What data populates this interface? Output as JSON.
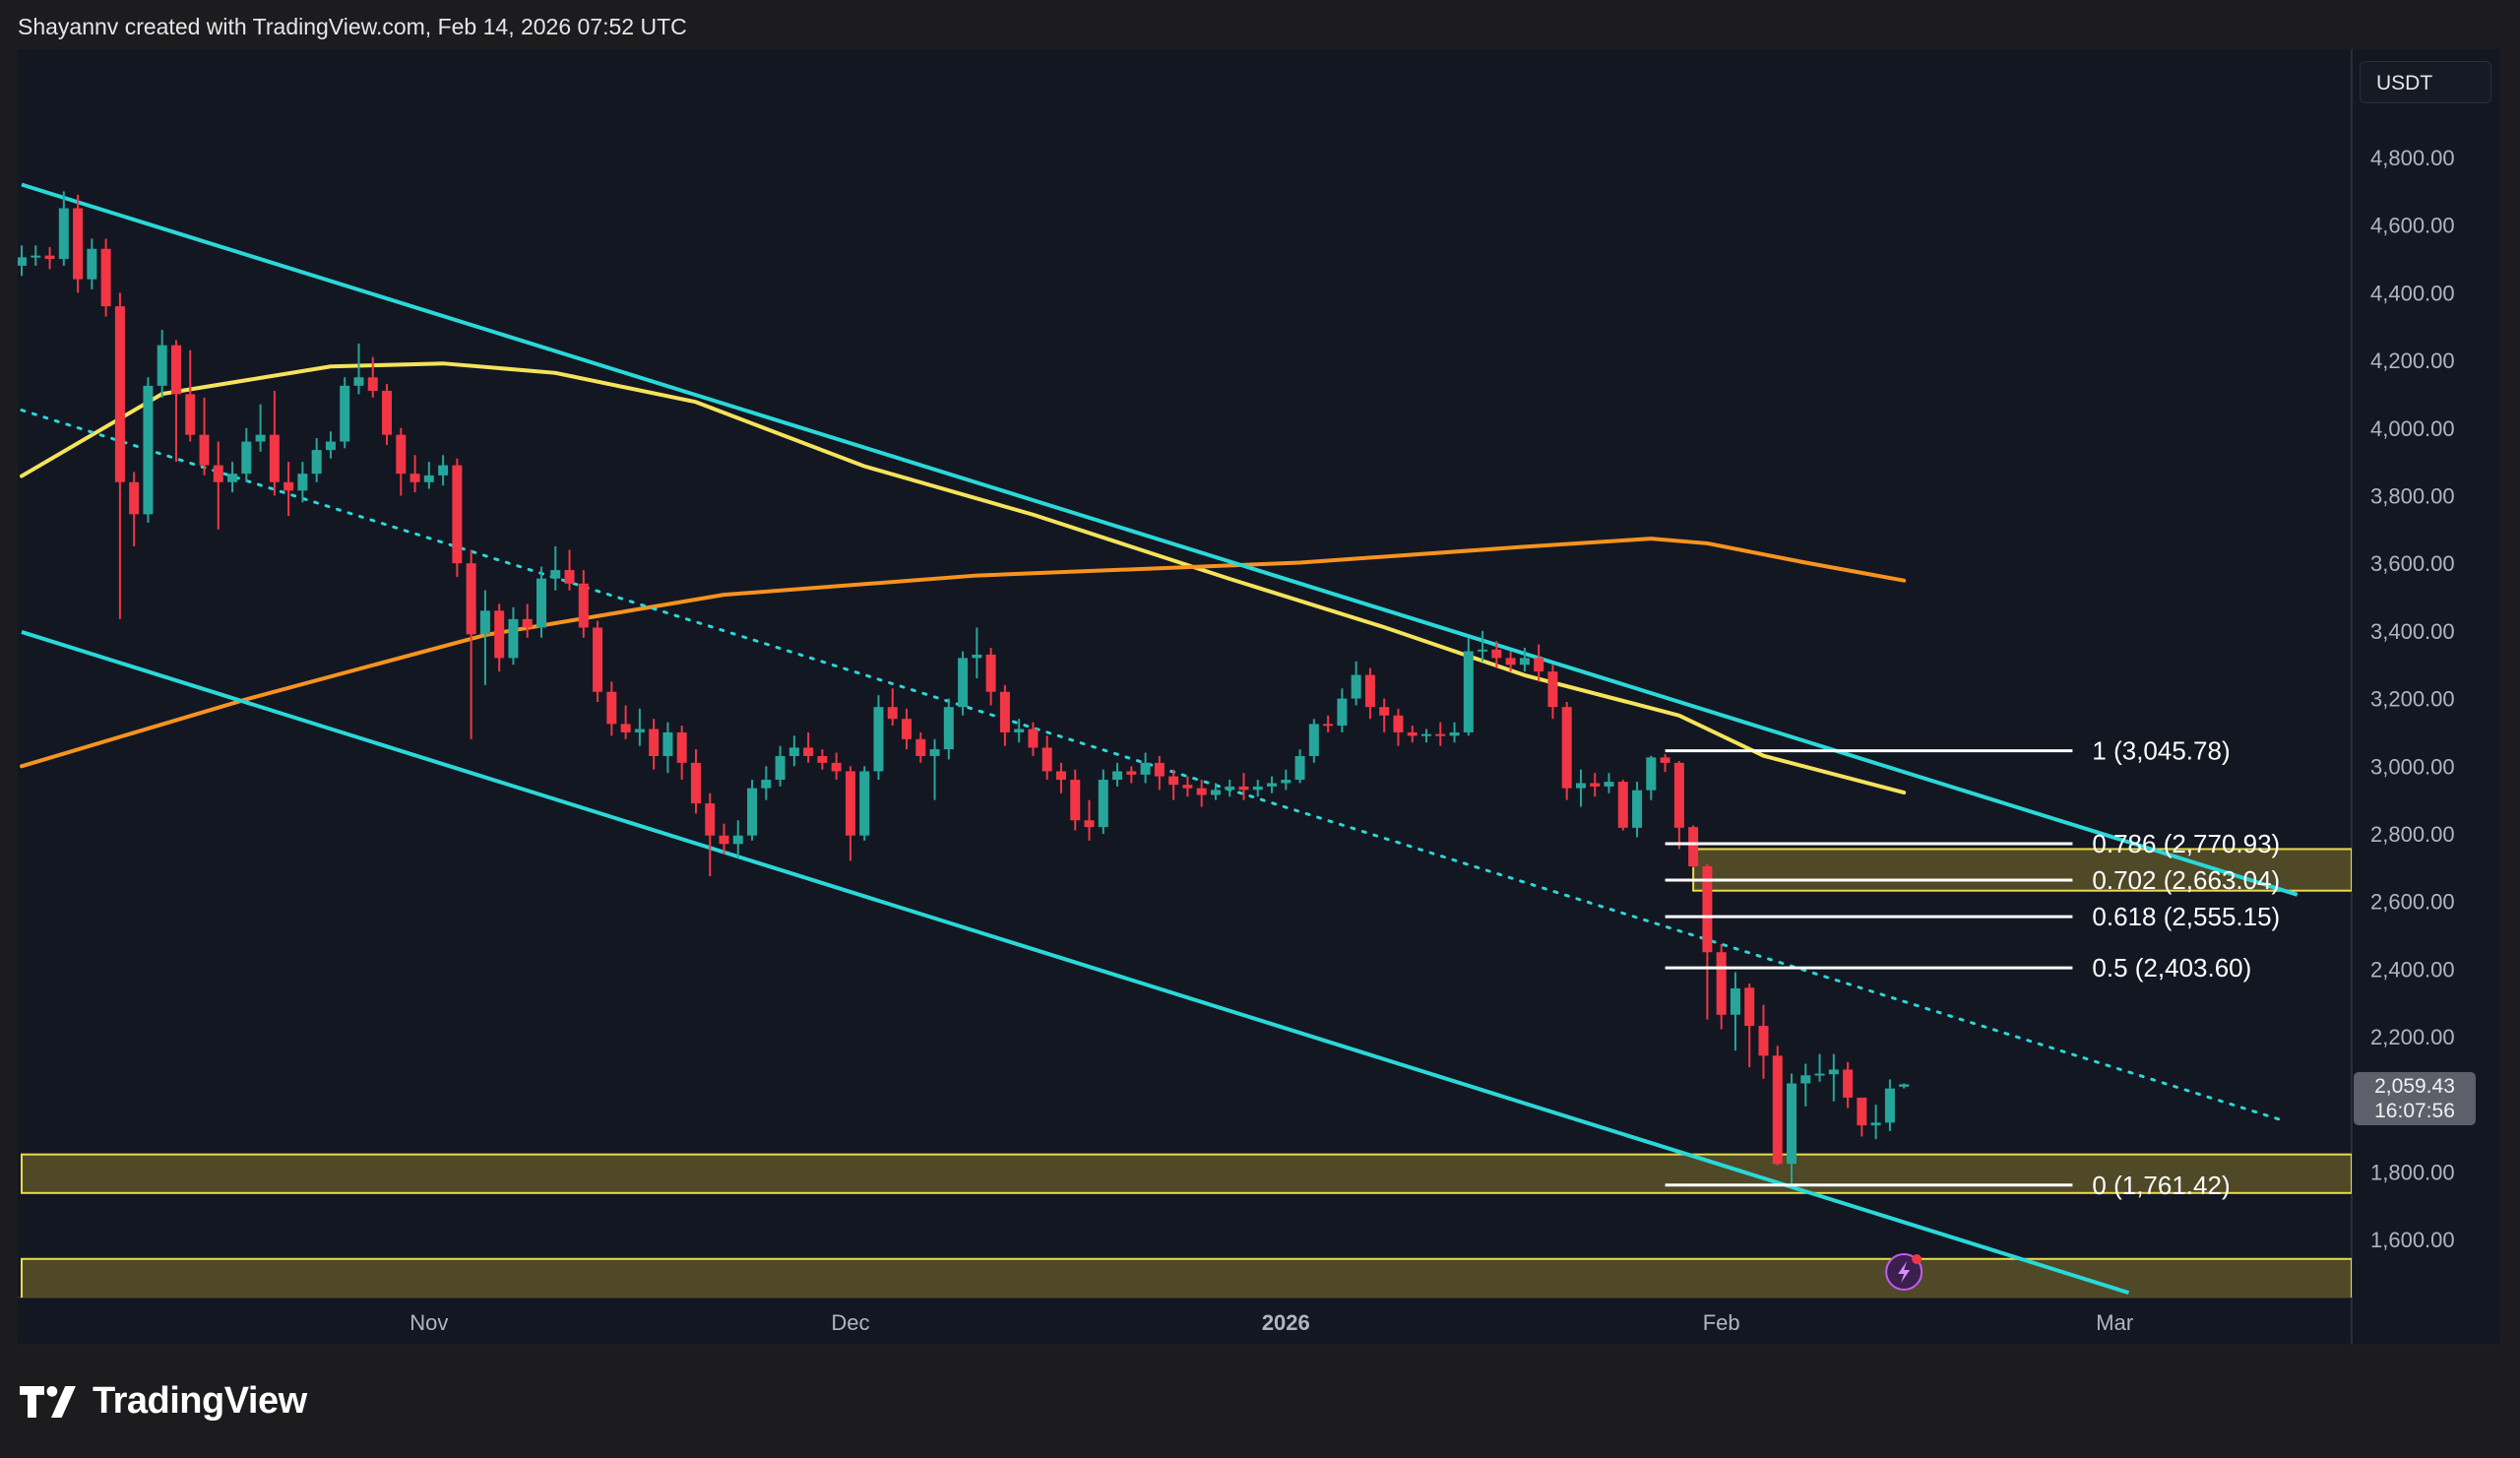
{
  "header": {
    "attribution": "Shayannv created with TradingView.com, Feb 14, 2026 07:52 UTC"
  },
  "currency_button": "USDT",
  "last_price": {
    "price": "2,059.43",
    "countdown": "16:07:56"
  },
  "logo": {
    "text": "TradingView"
  },
  "colors": {
    "up": "#26a69a",
    "down": "#f23645",
    "channel": "#2ad8d8",
    "ma_fast": "#f5e35a",
    "ma_slow": "#f7931e",
    "zone_fill": "#5a5228",
    "zone_border": "#e8dc4a",
    "fib": "#ffffff",
    "background": "#131722"
  },
  "chart_data": {
    "type": "candlestick",
    "title": "",
    "ylim": [
      1420,
      4900
    ],
    "xlim": [
      "2025-10-03",
      "2026-03-24"
    ],
    "grid": false,
    "y_ticks": [
      "4,800.00",
      "4,600.00",
      "4,400.00",
      "4,200.00",
      "4,000.00",
      "3,800.00",
      "3,600.00",
      "3,400.00",
      "3,200.00",
      "3,000.00",
      "2,800.00",
      "2,600.00",
      "2,400.00",
      "2,200.00",
      "1,800.00",
      "1,600.00"
    ],
    "y_tick_values": [
      4800,
      4600,
      4400,
      4200,
      4000,
      3800,
      3600,
      3400,
      3200,
      3000,
      2800,
      2600,
      2400,
      2200,
      1800,
      1600
    ],
    "x_ticks": [
      {
        "label": "Nov",
        "date": "2025-11-01",
        "bold": false
      },
      {
        "label": "Dec",
        "date": "2025-12-01",
        "bold": false
      },
      {
        "label": "2026",
        "date": "2026-01-01",
        "bold": true
      },
      {
        "label": "Feb",
        "date": "2026-02-01",
        "bold": false
      },
      {
        "label": "Mar",
        "date": "2026-03-01",
        "bold": false
      }
    ],
    "candles": [
      [
        "2025-10-03",
        4480,
        4540,
        4450,
        4505
      ],
      [
        "2025-10-04",
        4505,
        4540,
        4480,
        4510
      ],
      [
        "2025-10-05",
        4510,
        4535,
        4470,
        4500
      ],
      [
        "2025-10-06",
        4500,
        4700,
        4480,
        4650
      ],
      [
        "2025-10-07",
        4650,
        4690,
        4400,
        4440
      ],
      [
        "2025-10-08",
        4440,
        4560,
        4410,
        4530
      ],
      [
        "2025-10-09",
        4530,
        4560,
        4330,
        4360
      ],
      [
        "2025-10-10",
        4360,
        4400,
        3435,
        3840
      ],
      [
        "2025-10-11",
        3840,
        3870,
        3650,
        3745
      ],
      [
        "2025-10-12",
        3745,
        4150,
        3720,
        4125
      ],
      [
        "2025-10-13",
        4125,
        4290,
        4090,
        4245
      ],
      [
        "2025-10-14",
        4245,
        4260,
        3900,
        4100
      ],
      [
        "2025-10-15",
        4100,
        4230,
        3960,
        3980
      ],
      [
        "2025-10-16",
        3980,
        4090,
        3860,
        3890
      ],
      [
        "2025-10-17",
        3890,
        3960,
        3700,
        3840
      ],
      [
        "2025-10-18",
        3840,
        3900,
        3810,
        3865
      ],
      [
        "2025-10-19",
        3865,
        4000,
        3840,
        3960
      ],
      [
        "2025-10-20",
        3960,
        4070,
        3930,
        3980
      ],
      [
        "2025-10-21",
        3980,
        4110,
        3800,
        3840
      ],
      [
        "2025-10-22",
        3840,
        3900,
        3740,
        3815
      ],
      [
        "2025-10-23",
        3815,
        3900,
        3780,
        3865
      ],
      [
        "2025-10-24",
        3865,
        3970,
        3840,
        3935
      ],
      [
        "2025-10-25",
        3935,
        3990,
        3910,
        3960
      ],
      [
        "2025-10-26",
        3960,
        4150,
        3940,
        4125
      ],
      [
        "2025-10-27",
        4125,
        4250,
        4100,
        4150
      ],
      [
        "2025-10-28",
        4150,
        4210,
        4090,
        4110
      ],
      [
        "2025-10-29",
        4110,
        4130,
        3950,
        3980
      ],
      [
        "2025-10-30",
        3980,
        4000,
        3800,
        3865
      ],
      [
        "2025-10-31",
        3865,
        3920,
        3810,
        3840
      ],
      [
        "2025-11-01",
        3840,
        3900,
        3820,
        3860
      ],
      [
        "2025-11-02",
        3860,
        3920,
        3830,
        3890
      ],
      [
        "2025-11-03",
        3890,
        3910,
        3560,
        3600
      ],
      [
        "2025-11-04",
        3600,
        3640,
        3080,
        3390
      ],
      [
        "2025-11-05",
        3390,
        3520,
        3240,
        3460
      ],
      [
        "2025-11-06",
        3460,
        3480,
        3280,
        3320
      ],
      [
        "2025-11-07",
        3320,
        3470,
        3300,
        3435
      ],
      [
        "2025-11-08",
        3435,
        3480,
        3380,
        3410
      ],
      [
        "2025-11-09",
        3410,
        3590,
        3380,
        3555
      ],
      [
        "2025-11-10",
        3555,
        3650,
        3520,
        3580
      ],
      [
        "2025-11-11",
        3580,
        3640,
        3520,
        3540
      ],
      [
        "2025-11-12",
        3540,
        3580,
        3380,
        3410
      ],
      [
        "2025-11-13",
        3410,
        3430,
        3190,
        3220
      ],
      [
        "2025-11-14",
        3220,
        3250,
        3090,
        3125
      ],
      [
        "2025-11-15",
        3125,
        3180,
        3080,
        3100
      ],
      [
        "2025-11-16",
        3100,
        3170,
        3060,
        3110
      ],
      [
        "2025-11-17",
        3110,
        3140,
        2990,
        3030
      ],
      [
        "2025-11-18",
        3030,
        3130,
        2980,
        3100
      ],
      [
        "2025-11-19",
        3100,
        3120,
        2960,
        3010
      ],
      [
        "2025-11-20",
        3010,
        3050,
        2860,
        2890
      ],
      [
        "2025-11-21",
        2890,
        2920,
        2675,
        2795
      ],
      [
        "2025-11-22",
        2795,
        2830,
        2740,
        2770
      ],
      [
        "2025-11-23",
        2770,
        2840,
        2730,
        2795
      ],
      [
        "2025-11-24",
        2795,
        2960,
        2780,
        2935
      ],
      [
        "2025-11-25",
        2935,
        3000,
        2900,
        2960
      ],
      [
        "2025-11-26",
        2960,
        3060,
        2940,
        3030
      ],
      [
        "2025-11-27",
        3030,
        3090,
        3000,
        3055
      ],
      [
        "2025-11-28",
        3055,
        3100,
        3010,
        3030
      ],
      [
        "2025-11-29",
        3030,
        3050,
        2990,
        3010
      ],
      [
        "2025-11-30",
        3010,
        3040,
        2960,
        2985
      ],
      [
        "2025-12-01",
        2985,
        3000,
        2720,
        2795
      ],
      [
        "2025-12-02",
        2795,
        3000,
        2780,
        2985
      ],
      [
        "2025-12-03",
        2985,
        3210,
        2960,
        3175
      ],
      [
        "2025-12-04",
        3175,
        3230,
        3120,
        3140
      ],
      [
        "2025-12-05",
        3140,
        3170,
        3050,
        3080
      ],
      [
        "2025-12-06",
        3080,
        3100,
        3010,
        3030
      ],
      [
        "2025-12-07",
        3030,
        3080,
        2900,
        3050
      ],
      [
        "2025-12-08",
        3050,
        3200,
        3020,
        3175
      ],
      [
        "2025-12-09",
        3175,
        3340,
        3150,
        3320
      ],
      [
        "2025-12-10",
        3320,
        3410,
        3260,
        3330
      ],
      [
        "2025-12-11",
        3330,
        3350,
        3180,
        3220
      ],
      [
        "2025-12-12",
        3220,
        3240,
        3060,
        3100
      ],
      [
        "2025-12-13",
        3100,
        3140,
        3070,
        3110
      ],
      [
        "2025-12-14",
        3110,
        3130,
        3030,
        3055
      ],
      [
        "2025-12-15",
        3055,
        3090,
        2960,
        2985
      ],
      [
        "2025-12-16",
        2985,
        3010,
        2920,
        2960
      ],
      [
        "2025-12-17",
        2960,
        2990,
        2810,
        2840
      ],
      [
        "2025-12-18",
        2840,
        2900,
        2780,
        2820
      ],
      [
        "2025-12-19",
        2820,
        2990,
        2800,
        2960
      ],
      [
        "2025-12-20",
        2960,
        3010,
        2940,
        2985
      ],
      [
        "2025-12-21",
        2985,
        3000,
        2950,
        2975
      ],
      [
        "2025-12-22",
        2975,
        3040,
        2950,
        3010
      ],
      [
        "2025-12-23",
        3010,
        3030,
        2930,
        2970
      ],
      [
        "2025-12-24",
        2970,
        2990,
        2900,
        2945
      ],
      [
        "2025-12-25",
        2945,
        2970,
        2910,
        2935
      ],
      [
        "2025-12-26",
        2935,
        2960,
        2880,
        2915
      ],
      [
        "2025-12-27",
        2915,
        2950,
        2900,
        2930
      ],
      [
        "2025-12-28",
        2930,
        2960,
        2910,
        2940
      ],
      [
        "2025-12-29",
        2940,
        2980,
        2900,
        2930
      ],
      [
        "2025-12-30",
        2930,
        2960,
        2910,
        2940
      ],
      [
        "2025-12-31",
        2940,
        2970,
        2920,
        2950
      ],
      [
        "2026-01-01",
        2950,
        2990,
        2930,
        2960
      ],
      [
        "2026-01-02",
        2960,
        3050,
        2950,
        3030
      ],
      [
        "2026-01-03",
        3030,
        3140,
        3010,
        3125
      ],
      [
        "2026-01-04",
        3125,
        3150,
        3100,
        3120
      ],
      [
        "2026-01-05",
        3120,
        3230,
        3100,
        3200
      ],
      [
        "2026-01-06",
        3200,
        3310,
        3180,
        3270
      ],
      [
        "2026-01-07",
        3270,
        3290,
        3140,
        3175
      ],
      [
        "2026-01-08",
        3175,
        3200,
        3100,
        3150
      ],
      [
        "2026-01-09",
        3150,
        3170,
        3060,
        3100
      ],
      [
        "2026-01-10",
        3100,
        3120,
        3070,
        3090
      ],
      [
        "2026-01-11",
        3090,
        3110,
        3070,
        3095
      ],
      [
        "2026-01-12",
        3095,
        3130,
        3060,
        3090
      ],
      [
        "2026-01-13",
        3090,
        3130,
        3070,
        3100
      ],
      [
        "2026-01-14",
        3100,
        3380,
        3090,
        3340
      ],
      [
        "2026-01-15",
        3340,
        3400,
        3310,
        3345
      ],
      [
        "2026-01-16",
        3345,
        3370,
        3290,
        3320
      ],
      [
        "2026-01-17",
        3320,
        3340,
        3280,
        3300
      ],
      [
        "2026-01-18",
        3300,
        3350,
        3280,
        3320
      ],
      [
        "2026-01-19",
        3320,
        3360,
        3250,
        3280
      ],
      [
        "2026-01-20",
        3280,
        3300,
        3140,
        3175
      ],
      [
        "2026-01-21",
        3175,
        3190,
        2900,
        2935
      ],
      [
        "2026-01-22",
        2935,
        2990,
        2880,
        2950
      ],
      [
        "2026-01-23",
        2950,
        2980,
        2910,
        2940
      ],
      [
        "2026-01-24",
        2940,
        2980,
        2920,
        2954
      ],
      [
        "2026-01-25",
        2954,
        2960,
        2810,
        2818
      ],
      [
        "2026-01-26",
        2818,
        2954,
        2790,
        2929
      ],
      [
        "2026-01-27",
        2929,
        3031,
        2900,
        3026
      ],
      [
        "2026-01-28",
        3026,
        3036,
        2983,
        3010
      ],
      [
        "2026-01-29",
        3010,
        3015,
        2755,
        2818
      ],
      [
        "2026-01-30",
        2820,
        2825,
        2700,
        2704
      ],
      [
        "2026-01-31",
        2704,
        2711,
        2251,
        2450
      ],
      [
        "2026-02-01",
        2450,
        2474,
        2222,
        2265
      ],
      [
        "2026-02-02",
        2265,
        2391,
        2159,
        2343
      ],
      [
        "2026-02-03",
        2345,
        2357,
        2110,
        2232
      ],
      [
        "2026-02-04",
        2232,
        2294,
        2076,
        2144
      ],
      [
        "2026-02-05",
        2144,
        2173,
        1820,
        1824
      ],
      [
        "2026-02-06",
        1824,
        2091,
        1766,
        2062
      ],
      [
        "2026-02-07",
        2062,
        2120,
        1994,
        2086
      ],
      [
        "2026-02-08",
        2086,
        2149,
        2067,
        2091
      ],
      [
        "2026-02-09",
        2089,
        2149,
        2009,
        2103
      ],
      [
        "2026-02-10",
        2103,
        2125,
        1989,
        2020
      ],
      [
        "2026-02-11",
        2020,
        2020,
        1905,
        1938
      ],
      [
        "2026-02-12",
        1938,
        1999,
        1897,
        1946
      ],
      [
        "2026-02-13",
        1946,
        2074,
        1921,
        2047
      ],
      [
        "2026-02-14",
        2052,
        2062,
        2047,
        2059.43
      ]
    ],
    "moving_averages": [
      {
        "color_key": "ma_fast",
        "points": [
          [
            "2025-10-03",
            3858
          ],
          [
            "2025-10-13",
            4101
          ],
          [
            "2025-10-25",
            4182
          ],
          [
            "2025-11-02",
            4191
          ],
          [
            "2025-11-10",
            4163
          ],
          [
            "2025-11-20",
            4077
          ],
          [
            "2025-12-02",
            3887
          ],
          [
            "2025-12-14",
            3744
          ],
          [
            "2025-12-28",
            3554
          ],
          [
            "2026-01-08",
            3411
          ],
          [
            "2026-01-18",
            3269
          ],
          [
            "2026-01-29",
            3150
          ],
          [
            "2026-02-04",
            3031
          ],
          [
            "2026-02-14",
            2922
          ]
        ]
      },
      {
        "color_key": "ma_slow",
        "points": [
          [
            "2025-10-03",
            3000
          ],
          [
            "2025-10-19",
            3198
          ],
          [
            "2025-11-05",
            3388
          ],
          [
            "2025-11-22",
            3507
          ],
          [
            "2025-12-10",
            3564
          ],
          [
            "2026-01-02",
            3602
          ],
          [
            "2026-01-18",
            3649
          ],
          [
            "2026-01-27",
            3673
          ],
          [
            "2026-01-31",
            3659
          ],
          [
            "2026-02-07",
            3602
          ],
          [
            "2026-02-14",
            3549
          ]
        ]
      }
    ],
    "trendlines": [
      {
        "kind": "channel-upper",
        "style": "solid",
        "from": [
          "2025-10-03",
          4720
        ],
        "to": [
          "2026-03-14",
          2620
        ]
      },
      {
        "kind": "channel-lower",
        "style": "solid",
        "from": [
          "2025-10-03",
          3397
        ],
        "to": [
          "2026-03-02",
          1443
        ]
      },
      {
        "kind": "channel-mid",
        "style": "dotted",
        "from": [
          "2025-10-03",
          4053
        ],
        "to": [
          "2026-03-13",
          1952
        ]
      }
    ],
    "zones": [
      {
        "from": "2026-01-30",
        "top": 2755,
        "bottom": 2632
      },
      {
        "from": "2025-10-03",
        "top": 1852,
        "bottom": 1738
      },
      {
        "from": "2025-10-03",
        "top": 1543,
        "bottom": 1420
      }
    ],
    "fibonacci": {
      "from": "2026-01-28",
      "to": "2026-02-26",
      "levels": [
        {
          "ratio": 1,
          "price": 3045.78,
          "label": "1 (3,045.78)"
        },
        {
          "ratio": 0.786,
          "price": 2770.93,
          "label": "0.786 (2,770.93)"
        },
        {
          "ratio": 0.702,
          "price": 2663.04,
          "label": "0.702 (2,663.04)"
        },
        {
          "ratio": 0.618,
          "price": 2555.15,
          "label": "0.618 (2,555.15)"
        },
        {
          "ratio": 0.5,
          "price": 2403.6,
          "label": "0.5 (2,403.60)"
        },
        {
          "ratio": 0,
          "price": 1761.42,
          "label": "0 (1,761.42)"
        }
      ]
    },
    "last_price_value": 2059.43,
    "marker": {
      "icon": "lightning-icon",
      "date": "2026-02-14"
    }
  }
}
